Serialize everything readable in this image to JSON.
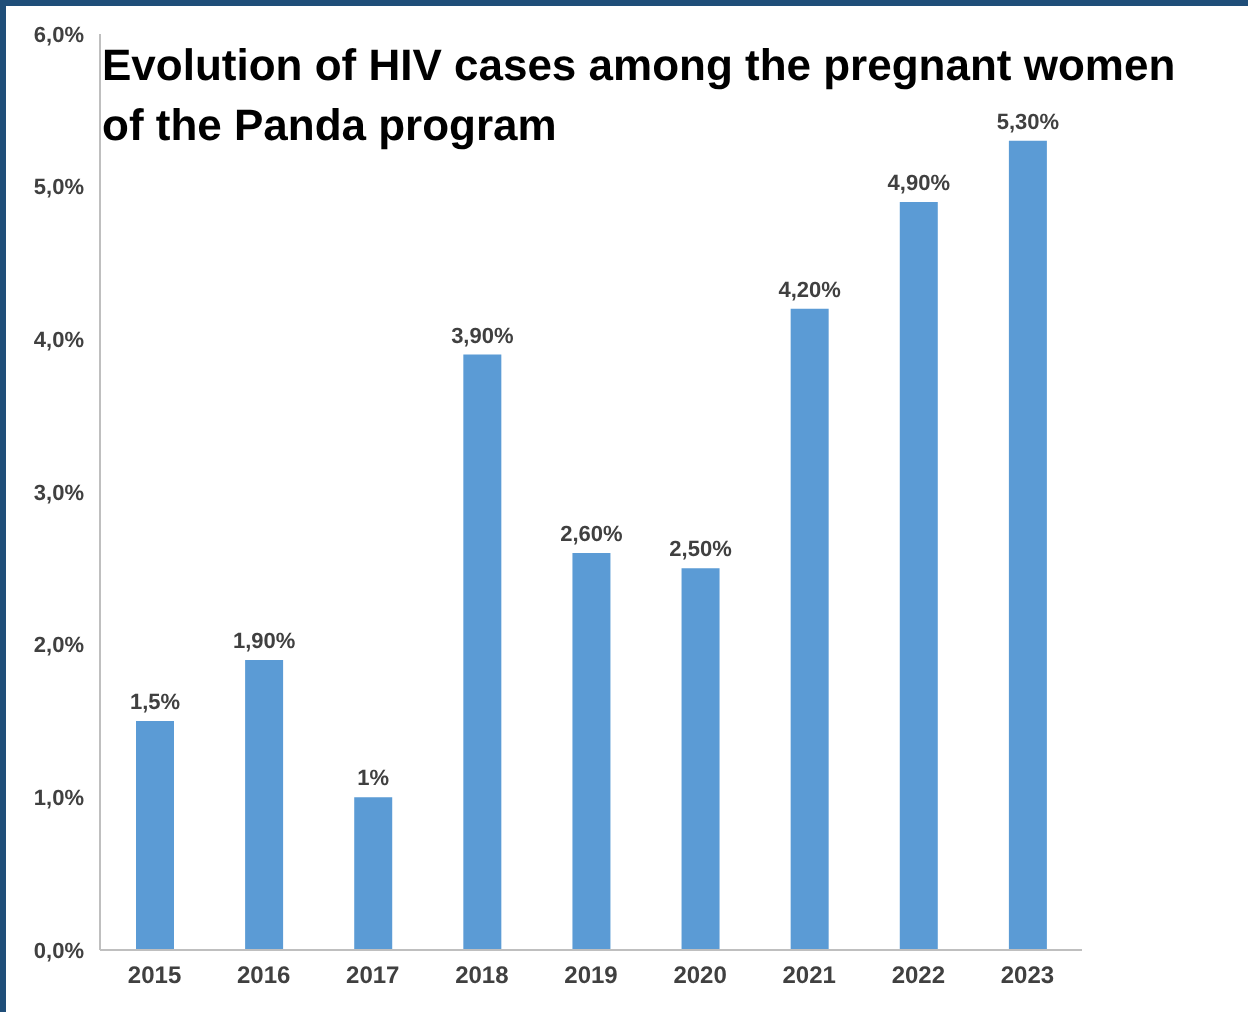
{
  "chart_data": {
    "type": "bar",
    "title": "Evolution of HIV cases among the pregnant women of the Panda program",
    "categories": [
      "2015",
      "2016",
      "2017",
      "2018",
      "2019",
      "2020",
      "2021",
      "2022",
      "2023"
    ],
    "values": [
      1.5,
      1.9,
      1,
      3.9,
      2.6,
      2.5,
      4.2,
      4.9,
      5.3
    ],
    "value_labels": [
      "1,5%",
      "1,90%",
      "1%",
      "3,90%",
      "2,60%",
      "2,50%",
      "4,20%",
      "4,90%",
      "5,30%"
    ],
    "color": "#5b9bd5",
    "ylim": [
      0,
      6
    ],
    "yticks": [
      {
        "value": 0,
        "label": "0,0%"
      },
      {
        "value": 1,
        "label": "1,0%"
      },
      {
        "value": 2,
        "label": "2,0%"
      },
      {
        "value": 3,
        "label": "3,0%"
      },
      {
        "value": 4,
        "label": "4,0%"
      },
      {
        "value": 5,
        "label": "5,0%"
      },
      {
        "value": 6,
        "label": "6,0%"
      }
    ],
    "grid": false,
    "legend": false
  }
}
